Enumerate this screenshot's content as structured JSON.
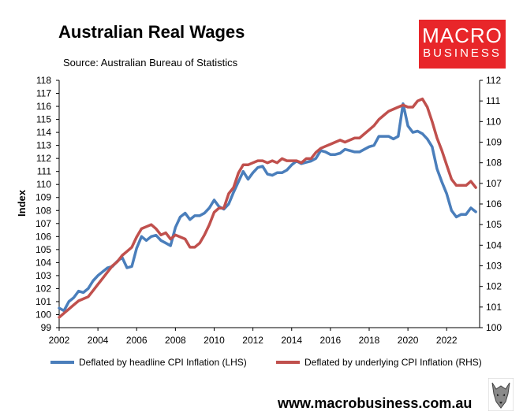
{
  "header": {
    "title": "Australian Real Wages",
    "source": "Source: Australian Bureau of Statistics"
  },
  "logo": {
    "line1": "MACRO",
    "line2": "BUSINESS",
    "color": "#e8262a"
  },
  "footer": {
    "url": "www.macrobusiness.com.au",
    "icon": "wolf-icon"
  },
  "chart_data": {
    "type": "line",
    "title": "Australian Real Wages",
    "ylabel": "Index",
    "y2label": "",
    "xlim": [
      2002,
      2023.7
    ],
    "ylim": [
      99,
      118
    ],
    "y2lim": [
      100,
      112
    ],
    "x_ticks": [
      "2002",
      "2004",
      "2006",
      "2008",
      "2010",
      "2012",
      "2014",
      "2016",
      "2018",
      "2020",
      "2022"
    ],
    "y_ticks": [
      "99",
      "100",
      "101",
      "102",
      "103",
      "104",
      "105",
      "106",
      "107",
      "108",
      "109",
      "110",
      "111",
      "112",
      "113",
      "114",
      "115",
      "116",
      "117",
      "118"
    ],
    "y2_ticks": [
      "100",
      "101",
      "102",
      "103",
      "104",
      "105",
      "106",
      "107",
      "108",
      "109",
      "110",
      "111",
      "112"
    ],
    "grid": false,
    "legend_position": "bottom",
    "series": [
      {
        "name": "Deflated by headline CPI Inflation (LHS)",
        "axis": "left",
        "color": "#4a7ebb",
        "points": [
          [
            2002.0,
            100.5
          ],
          [
            2002.25,
            100.3
          ],
          [
            2002.5,
            101.0
          ],
          [
            2002.75,
            101.3
          ],
          [
            2003.0,
            101.8
          ],
          [
            2003.25,
            101.7
          ],
          [
            2003.5,
            102.0
          ],
          [
            2003.75,
            102.6
          ],
          [
            2004.0,
            103.0
          ],
          [
            2004.25,
            103.3
          ],
          [
            2004.5,
            103.6
          ],
          [
            2004.75,
            103.7
          ],
          [
            2005.0,
            104.1
          ],
          [
            2005.25,
            104.4
          ],
          [
            2005.5,
            103.6
          ],
          [
            2005.75,
            103.7
          ],
          [
            2006.0,
            105.1
          ],
          [
            2006.25,
            106.0
          ],
          [
            2006.5,
            105.7
          ],
          [
            2006.75,
            106.0
          ],
          [
            2007.0,
            106.1
          ],
          [
            2007.25,
            105.7
          ],
          [
            2007.5,
            105.5
          ],
          [
            2007.75,
            105.3
          ],
          [
            2008.0,
            106.7
          ],
          [
            2008.25,
            107.5
          ],
          [
            2008.5,
            107.8
          ],
          [
            2008.75,
            107.3
          ],
          [
            2009.0,
            107.6
          ],
          [
            2009.25,
            107.6
          ],
          [
            2009.5,
            107.8
          ],
          [
            2009.75,
            108.2
          ],
          [
            2010.0,
            108.8
          ],
          [
            2010.25,
            108.3
          ],
          [
            2010.5,
            108.1
          ],
          [
            2010.75,
            108.5
          ],
          [
            2011.0,
            109.4
          ],
          [
            2011.25,
            110.2
          ],
          [
            2011.5,
            111.0
          ],
          [
            2011.75,
            110.4
          ],
          [
            2012.0,
            110.9
          ],
          [
            2012.25,
            111.3
          ],
          [
            2012.5,
            111.4
          ],
          [
            2012.75,
            110.8
          ],
          [
            2013.0,
            110.7
          ],
          [
            2013.25,
            110.9
          ],
          [
            2013.5,
            110.9
          ],
          [
            2013.75,
            111.1
          ],
          [
            2014.0,
            111.5
          ],
          [
            2014.25,
            111.8
          ],
          [
            2014.5,
            111.6
          ],
          [
            2014.75,
            111.7
          ],
          [
            2015.0,
            111.8
          ],
          [
            2015.25,
            112.0
          ],
          [
            2015.5,
            112.6
          ],
          [
            2015.75,
            112.5
          ],
          [
            2016.0,
            112.3
          ],
          [
            2016.25,
            112.3
          ],
          [
            2016.5,
            112.4
          ],
          [
            2016.75,
            112.7
          ],
          [
            2017.0,
            112.6
          ],
          [
            2017.25,
            112.5
          ],
          [
            2017.5,
            112.5
          ],
          [
            2017.75,
            112.7
          ],
          [
            2018.0,
            112.9
          ],
          [
            2018.25,
            113.0
          ],
          [
            2018.5,
            113.7
          ],
          [
            2018.75,
            113.7
          ],
          [
            2019.0,
            113.7
          ],
          [
            2019.25,
            113.5
          ],
          [
            2019.5,
            113.7
          ],
          [
            2019.75,
            116.2
          ],
          [
            2020.0,
            114.5
          ],
          [
            2020.25,
            114.0
          ],
          [
            2020.5,
            114.1
          ],
          [
            2020.75,
            113.9
          ],
          [
            2021.0,
            113.5
          ],
          [
            2021.25,
            112.9
          ],
          [
            2021.5,
            111.2
          ],
          [
            2021.75,
            110.2
          ],
          [
            2022.0,
            109.3
          ],
          [
            2022.25,
            108.0
          ],
          [
            2022.5,
            107.5
          ],
          [
            2022.75,
            107.7
          ],
          [
            2023.0,
            107.7
          ],
          [
            2023.25,
            108.2
          ],
          [
            2023.5,
            107.9
          ]
        ]
      },
      {
        "name": "Deflated by underlying CPI Inflation (RHS)",
        "axis": "right",
        "color": "#c0504d",
        "points": [
          [
            2002.0,
            100.5
          ],
          [
            2002.25,
            100.7
          ],
          [
            2002.5,
            100.9
          ],
          [
            2002.75,
            101.1
          ],
          [
            2003.0,
            101.3
          ],
          [
            2003.25,
            101.4
          ],
          [
            2003.5,
            101.5
          ],
          [
            2003.75,
            101.8
          ],
          [
            2004.0,
            102.1
          ],
          [
            2004.25,
            102.4
          ],
          [
            2004.5,
            102.7
          ],
          [
            2004.75,
            103.0
          ],
          [
            2005.0,
            103.2
          ],
          [
            2005.25,
            103.5
          ],
          [
            2005.5,
            103.7
          ],
          [
            2005.75,
            103.9
          ],
          [
            2006.0,
            104.4
          ],
          [
            2006.25,
            104.8
          ],
          [
            2006.5,
            104.9
          ],
          [
            2006.75,
            105.0
          ],
          [
            2007.0,
            104.8
          ],
          [
            2007.25,
            104.5
          ],
          [
            2007.5,
            104.6
          ],
          [
            2007.75,
            104.3
          ],
          [
            2008.0,
            104.5
          ],
          [
            2008.25,
            104.4
          ],
          [
            2008.5,
            104.3
          ],
          [
            2008.75,
            103.9
          ],
          [
            2009.0,
            103.9
          ],
          [
            2009.25,
            104.1
          ],
          [
            2009.5,
            104.5
          ],
          [
            2009.75,
            105.0
          ],
          [
            2010.0,
            105.6
          ],
          [
            2010.25,
            105.8
          ],
          [
            2010.5,
            105.8
          ],
          [
            2010.75,
            106.5
          ],
          [
            2011.0,
            106.8
          ],
          [
            2011.25,
            107.5
          ],
          [
            2011.5,
            107.9
          ],
          [
            2011.75,
            107.9
          ],
          [
            2012.0,
            108.0
          ],
          [
            2012.25,
            108.1
          ],
          [
            2012.5,
            108.1
          ],
          [
            2012.75,
            108.0
          ],
          [
            2013.0,
            108.1
          ],
          [
            2013.25,
            108.0
          ],
          [
            2013.5,
            108.2
          ],
          [
            2013.75,
            108.1
          ],
          [
            2014.0,
            108.1
          ],
          [
            2014.25,
            108.1
          ],
          [
            2014.5,
            108.0
          ],
          [
            2014.75,
            108.2
          ],
          [
            2015.0,
            108.2
          ],
          [
            2015.25,
            108.5
          ],
          [
            2015.5,
            108.7
          ],
          [
            2015.75,
            108.8
          ],
          [
            2016.0,
            108.9
          ],
          [
            2016.25,
            109.0
          ],
          [
            2016.5,
            109.1
          ],
          [
            2016.75,
            109.0
          ],
          [
            2017.0,
            109.1
          ],
          [
            2017.25,
            109.2
          ],
          [
            2017.5,
            109.2
          ],
          [
            2017.75,
            109.4
          ],
          [
            2018.0,
            109.6
          ],
          [
            2018.25,
            109.8
          ],
          [
            2018.5,
            110.1
          ],
          [
            2018.75,
            110.3
          ],
          [
            2019.0,
            110.5
          ],
          [
            2019.25,
            110.6
          ],
          [
            2019.5,
            110.7
          ],
          [
            2019.75,
            110.8
          ],
          [
            2020.0,
            110.7
          ],
          [
            2020.25,
            110.7
          ],
          [
            2020.5,
            111.0
          ],
          [
            2020.75,
            111.1
          ],
          [
            2021.0,
            110.7
          ],
          [
            2021.25,
            110.0
          ],
          [
            2021.5,
            109.2
          ],
          [
            2021.75,
            108.6
          ],
          [
            2022.0,
            107.9
          ],
          [
            2022.25,
            107.2
          ],
          [
            2022.5,
            106.9
          ],
          [
            2022.75,
            106.9
          ],
          [
            2023.0,
            106.9
          ],
          [
            2023.25,
            107.1
          ],
          [
            2023.5,
            106.8
          ]
        ]
      }
    ]
  }
}
